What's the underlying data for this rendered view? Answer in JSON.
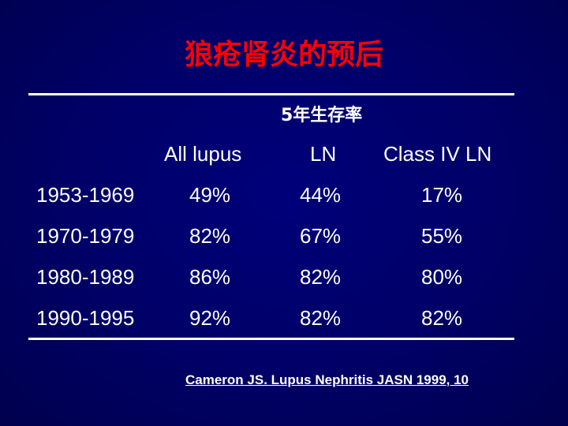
{
  "title": "狼疮肾炎的预后",
  "subtitle": "5年生存率",
  "table": {
    "columns": [
      "All lupus",
      "LN",
      "Class IV LN"
    ],
    "rows": [
      {
        "period": "1953-1969",
        "values": [
          "49%",
          "44%",
          "17%"
        ]
      },
      {
        "period": "1970-1979",
        "values": [
          "82%",
          "67%",
          "55%"
        ]
      },
      {
        "period": "1980-1989",
        "values": [
          "86%",
          "82%",
          "80%"
        ]
      },
      {
        "period": "1990-1995",
        "values": [
          "92%",
          "82%",
          "82%"
        ]
      }
    ]
  },
  "citation": "Cameron JS. Lupus Nephritis JASN 1999, 10",
  "colors": {
    "background": "#000066",
    "title": "#ff0000",
    "text": "#ffffff"
  }
}
